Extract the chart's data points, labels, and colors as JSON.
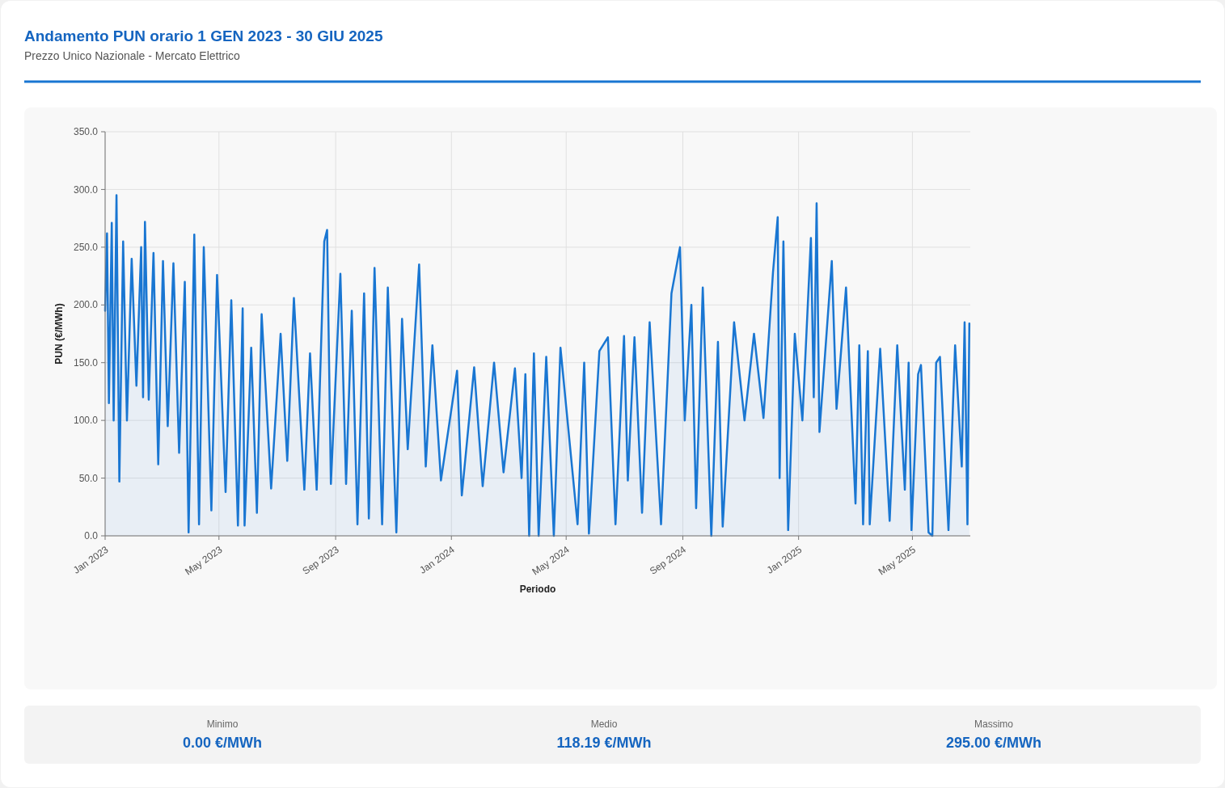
{
  "chart_data": {
    "type": "area",
    "title": "Andamento PUN orario 1 GEN 2023 - 30 GIU 2025",
    "subtitle": "Prezzo Unico Nazionale - Mercato Elettrico",
    "xlabel": "Periodo",
    "ylabel": "PUN (€/MWh)",
    "xlim": [
      "2023-01-01",
      "2025-07-01"
    ],
    "xticks": [
      {
        "value": "2023-01-01",
        "label": "Jan 2023"
      },
      {
        "value": "2023-05-01",
        "label": "May 2023"
      },
      {
        "value": "2023-09-01",
        "label": "Sep 2023"
      },
      {
        "value": "2024-01-01",
        "label": "Jan 2024"
      },
      {
        "value": "2024-05-01",
        "label": "May 2024"
      },
      {
        "value": "2024-09-01",
        "label": "Sep 2024"
      },
      {
        "value": "2025-01-01",
        "label": "Jan 2025"
      },
      {
        "value": "2025-05-01",
        "label": "May 2025"
      }
    ],
    "ylim": [
      0,
      350
    ],
    "yticks": [
      {
        "value": 0,
        "label": "0.0"
      },
      {
        "value": 50,
        "label": "50.0"
      },
      {
        "value": 100,
        "label": "100.0"
      },
      {
        "value": 150,
        "label": "150.0"
      },
      {
        "value": 200,
        "label": "200.0"
      },
      {
        "value": 250,
        "label": "250.0"
      },
      {
        "value": 300,
        "label": "300.0"
      },
      {
        "value": 350,
        "label": "350.0"
      }
    ],
    "grid": true,
    "series": [
      {
        "color": "#1976d2",
        "x": [
          "2023-01-01",
          "2023-01-03",
          "2023-01-05",
          "2023-01-08",
          "2023-01-10",
          "2023-01-13",
          "2023-01-16",
          "2023-01-20",
          "2023-01-24",
          "2023-01-29",
          "2023-02-03",
          "2023-02-08",
          "2023-02-10",
          "2023-02-12",
          "2023-02-16",
          "2023-02-21",
          "2023-02-26",
          "2023-03-03",
          "2023-03-08",
          "2023-03-14",
          "2023-03-20",
          "2023-03-26",
          "2023-03-30",
          "2023-04-05",
          "2023-04-10",
          "2023-04-15",
          "2023-04-23",
          "2023-04-29",
          "2023-05-08",
          "2023-05-14",
          "2023-05-21",
          "2023-05-26",
          "2023-05-28",
          "2023-06-04",
          "2023-06-10",
          "2023-06-15",
          "2023-06-25",
          "2023-07-05",
          "2023-07-12",
          "2023-07-19",
          "2023-07-30",
          "2023-08-05",
          "2023-08-12",
          "2023-08-20",
          "2023-08-23",
          "2023-08-27",
          "2023-09-06",
          "2023-09-12",
          "2023-09-18",
          "2023-09-24",
          "2023-10-01",
          "2023-10-06",
          "2023-10-12",
          "2023-10-20",
          "2023-10-26",
          "2023-11-04",
          "2023-11-10",
          "2023-11-16",
          "2023-11-28",
          "2023-12-05",
          "2023-12-12",
          "2023-12-21",
          "2024-01-07",
          "2024-01-12",
          "2024-01-25",
          "2024-02-03",
          "2024-02-15",
          "2024-02-25",
          "2024-03-08",
          "2024-03-15",
          "2024-03-19",
          "2024-03-23",
          "2024-03-28",
          "2024-04-02",
          "2024-04-10",
          "2024-04-18",
          "2024-04-25",
          "2024-05-13",
          "2024-05-20",
          "2024-05-25",
          "2024-06-05",
          "2024-06-14",
          "2024-06-22",
          "2024-07-01",
          "2024-07-05",
          "2024-07-12",
          "2024-07-20",
          "2024-07-28",
          "2024-08-09",
          "2024-08-20",
          "2024-08-29",
          "2024-09-03",
          "2024-09-10",
          "2024-09-15",
          "2024-09-22",
          "2024-10-01",
          "2024-10-08",
          "2024-10-13",
          "2024-10-25",
          "2024-11-05",
          "2024-11-15",
          "2024-11-25",
          "2024-12-05",
          "2024-12-10",
          "2024-12-12",
          "2024-12-16",
          "2024-12-21",
          "2024-12-28",
          "2025-01-05",
          "2025-01-14",
          "2025-01-17",
          "2025-01-20",
          "2025-01-23",
          "2025-02-05",
          "2025-02-10",
          "2025-02-20",
          "2025-03-02",
          "2025-03-06",
          "2025-03-10",
          "2025-03-15",
          "2025-03-17",
          "2025-03-28",
          "2025-04-07",
          "2025-04-15",
          "2025-04-23",
          "2025-04-27",
          "2025-04-30",
          "2025-05-07",
          "2025-05-10",
          "2025-05-18",
          "2025-05-22",
          "2025-05-26",
          "2025-05-30",
          "2025-06-08",
          "2025-06-15",
          "2025-06-22",
          "2025-06-25",
          "2025-06-28",
          "2025-06-30"
        ],
        "values": [
          195,
          262,
          115,
          271,
          100,
          295,
          47,
          255,
          100,
          240,
          130,
          250,
          120,
          272,
          118,
          245,
          62,
          238,
          95,
          236,
          72,
          220,
          3,
          261,
          10,
          250,
          22,
          226,
          38,
          204,
          9,
          197,
          9,
          163,
          20,
          192,
          41,
          175,
          65,
          206,
          40,
          158,
          40,
          255,
          265,
          45,
          227,
          45,
          195,
          10,
          210,
          15,
          232,
          10,
          215,
          3,
          188,
          75,
          235,
          60,
          165,
          48,
          143,
          35,
          146,
          43,
          150,
          55,
          145,
          50,
          140,
          0,
          158,
          0,
          155,
          0,
          163,
          10,
          150,
          2,
          160,
          172,
          10,
          173,
          48,
          172,
          20,
          185,
          10,
          210,
          250,
          100,
          200,
          24,
          215,
          0,
          168,
          8,
          185,
          100,
          175,
          102,
          228,
          276,
          50,
          255,
          5,
          175,
          100,
          258,
          120,
          288,
          90,
          238,
          110,
          215,
          28,
          165,
          10,
          160,
          10,
          162,
          13,
          165,
          40,
          150,
          5,
          140,
          148,
          3,
          0,
          150,
          155,
          5,
          165,
          60,
          185,
          10,
          184
        ]
      }
    ],
    "annotations": [
      "Minimo",
      "0.00 €/MWh",
      "Medio",
      "118.19 €/MWh",
      "Massimo",
      "295.00 €/MWh"
    ]
  }
}
